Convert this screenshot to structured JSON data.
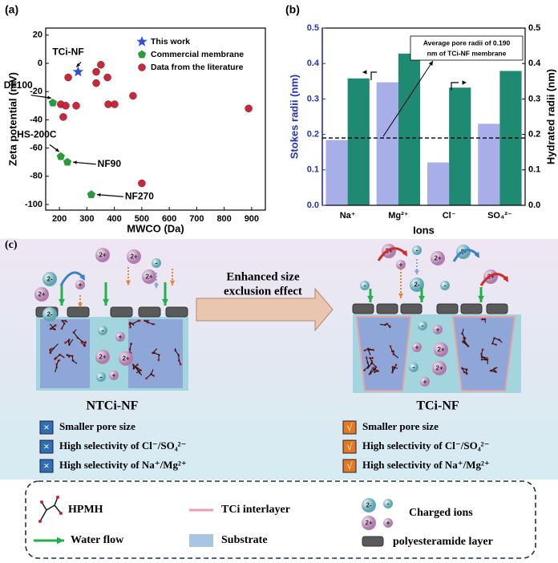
{
  "chart_data": [
    {
      "type": "scatter",
      "panel_label": "(a)",
      "x_label": "MWCO (Da)",
      "y_label": "Zeta potential (mV)",
      "xlim": [
        150,
        950
      ],
      "xticks": [
        200,
        300,
        400,
        500,
        600,
        700,
        800,
        900
      ],
      "ylim": [
        -104,
        25
      ],
      "yticks": [
        -100,
        -80,
        -60,
        -40,
        -20,
        0,
        20
      ],
      "series": [
        {
          "name": "This work",
          "color": "#2f4fe0",
          "marker": "star",
          "x": [
            268
          ],
          "values": [
            -6
          ],
          "point_labels": [
            "TCi-NF"
          ]
        },
        {
          "name": "Commercial membrane",
          "color": "#2a9a3a",
          "marker": "pentagon",
          "x": [
            176,
            205,
            229,
            316
          ],
          "values": [
            -28,
            -66,
            -70,
            -93
          ],
          "point_labels": [
            "DF100",
            "HS-200C",
            "NF90",
            "NF270"
          ]
        },
        {
          "name": "Data from the literature",
          "color": "#c8283a",
          "marker": "circle",
          "x": [
            232,
            205,
            214,
            223,
            261,
            334,
            351,
            334,
            375,
            378,
            401,
            468,
            500,
            889
          ],
          "values": [
            -10,
            -29,
            -38,
            -30,
            -30,
            -6,
            -1,
            -14,
            -10,
            -29,
            -29,
            -23,
            -85,
            -32
          ]
        }
      ]
    },
    {
      "type": "bar",
      "panel_label": "(b)",
      "x_label": "Ions",
      "y_label": "Stokes radii (nm)",
      "y2_label": "Hydrated radii (nm)",
      "y_color": "#2233bb",
      "categories": [
        "Na⁺",
        "Mg²⁺",
        "Cl⁻",
        "SO₄²⁻"
      ],
      "ylim": [
        0,
        0.5
      ],
      "yticks": [
        {
          "value": 0,
          "label": "0.0"
        },
        0.1,
        0.2,
        0.3,
        0.4,
        0.5
      ],
      "y2lim": [
        0,
        0.5
      ],
      "y2ticks": [
        {
          "value": 0,
          "label": "0.0"
        },
        0.1,
        0.2,
        0.3,
        0.4,
        0.5
      ],
      "series": [
        {
          "color": "#a7aee8",
          "values": [
            0.184,
            0.347,
            0.121,
            0.23
          ]
        },
        {
          "color": "#1f8a72",
          "axis": "y2",
          "values": [
            0.358,
            0.428,
            0.332,
            0.379
          ]
        }
      ],
      "reference_line": {
        "value": 0.19,
        "label_lines": [
          "Average pore radii of 0.190",
          "nm of TCi-NF membrane"
        ]
      }
    }
  ],
  "panel_c": {
    "label": "(c)",
    "transition": [
      "Enhanced size",
      "exclusion effect"
    ],
    "ion_labels": {
      "a2": "2-",
      "a1": "-",
      "c2": "2+",
      "c1": "+"
    },
    "left": {
      "title": "NTCi-NF",
      "mark": "×",
      "items": [
        "Smaller pore size",
        "High selectivity of Cl⁻/SO₄²⁻",
        "High selectivity of Na⁺/Mg²⁺"
      ]
    },
    "right": {
      "title": "TCi-NF",
      "mark": "√",
      "items": [
        "Smaller pore size",
        "High selectivity of Cl⁻/SO₄²⁻",
        "High selectivity of Na⁺/Mg²⁺"
      ]
    },
    "legend": [
      "HPMH",
      "TCi interlayer",
      "Charged ions",
      "Water flow",
      "Substrate",
      "polyesteramide layer"
    ]
  }
}
